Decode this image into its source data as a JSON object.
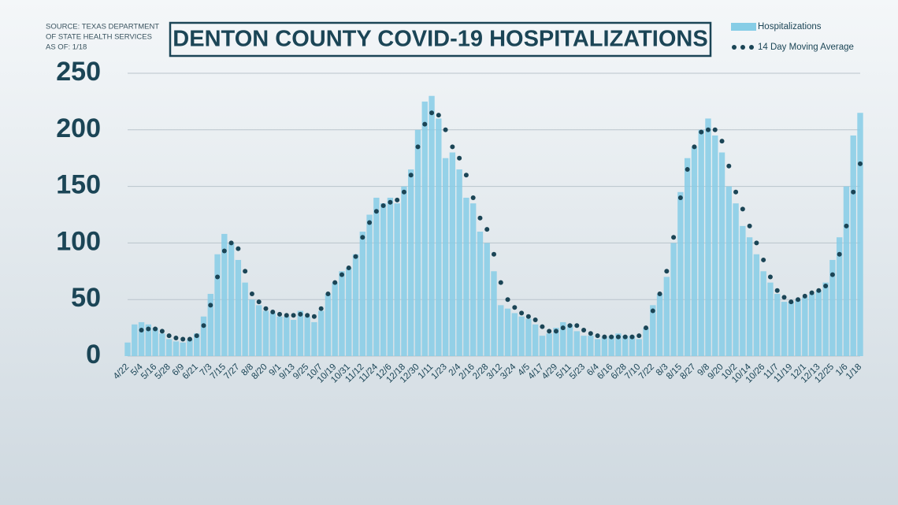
{
  "chart_data": {
    "type": "bar",
    "title": "DENTON COUNTY COVID-19 HOSPITALIZATIONS",
    "source": [
      "SOURCE: TEXAS DEPARTMENT",
      "OF STATE HEALTH SERVICES",
      "AS OF: 1/18"
    ],
    "categories": [
      "4/22",
      null,
      "5/4",
      null,
      "5/16",
      null,
      "5/28",
      null,
      "6/9",
      null,
      "6/21",
      null,
      "7/3",
      null,
      "7/15",
      null,
      "7/27",
      null,
      "8/8",
      null,
      "8/20",
      null,
      "9/1",
      null,
      "9/13",
      null,
      "9/25",
      null,
      "10/7",
      null,
      "10/19",
      null,
      "10/31",
      null,
      "11/12",
      null,
      "11/24",
      null,
      "12/6",
      null,
      "12/18",
      null,
      "12/30",
      null,
      "1/11",
      null,
      "1/23",
      null,
      "2/4",
      null,
      "2/16",
      null,
      "2/28",
      null,
      "3/12",
      null,
      "3/24",
      null,
      "4/5",
      null,
      "4/17",
      null,
      "4/29",
      null,
      "5/11",
      null,
      "5/23",
      null,
      "6/4",
      null,
      "6/16",
      null,
      "6/28",
      null,
      "7/10",
      null,
      "7/22",
      null,
      "8/3",
      null,
      "8/15",
      null,
      "8/27",
      null,
      "9/8",
      null,
      "9/20",
      null,
      "10/2",
      null,
      "10/14",
      null,
      "10/26",
      null,
      "11/7",
      null,
      "11/19",
      null,
      "12/1",
      null,
      "12/13",
      null,
      "12/25",
      null,
      "1/6",
      null,
      "1/18"
    ],
    "series": [
      {
        "name": "Hospitalizations",
        "type": "bar",
        "color": "#86cde6",
        "values": [
          12,
          28,
          30,
          28,
          25,
          20,
          15,
          13,
          12,
          15,
          20,
          35,
          55,
          90,
          108,
          100,
          85,
          65,
          50,
          45,
          40,
          38,
          35,
          35,
          32,
          40,
          35,
          30,
          40,
          55,
          65,
          75,
          78,
          90,
          110,
          125,
          140,
          135,
          140,
          135,
          150,
          165,
          200,
          225,
          230,
          210,
          175,
          180,
          165,
          140,
          135,
          110,
          100,
          75,
          45,
          42,
          38,
          35,
          33,
          28,
          18,
          20,
          25,
          30,
          28,
          22,
          18,
          18,
          15,
          17,
          18,
          20,
          18,
          18,
          15,
          25,
          45,
          55,
          70,
          100,
          145,
          175,
          185,
          200,
          210,
          195,
          180,
          150,
          135,
          115,
          105,
          90,
          75,
          65,
          55,
          48,
          48,
          50,
          52,
          55,
          58,
          65,
          85,
          105,
          150,
          195,
          215
        ]
      },
      {
        "name": "14 Day Moving Average",
        "type": "dots",
        "color": "#1b4556",
        "values": [
          null,
          null,
          23,
          24,
          24,
          22,
          18,
          16,
          15,
          15,
          18,
          27,
          45,
          70,
          93,
          100,
          95,
          75,
          55,
          48,
          42,
          39,
          37,
          36,
          36,
          37,
          36,
          35,
          42,
          55,
          65,
          72,
          78,
          88,
          105,
          118,
          128,
          133,
          136,
          138,
          145,
          160,
          185,
          205,
          215,
          213,
          200,
          185,
          175,
          160,
          140,
          122,
          112,
          90,
          65,
          50,
          43,
          38,
          35,
          32,
          26,
          22,
          22,
          25,
          27,
          27,
          23,
          20,
          18,
          17,
          17,
          17,
          17,
          17,
          18,
          25,
          40,
          55,
          75,
          105,
          140,
          165,
          185,
          198,
          200,
          200,
          190,
          168,
          145,
          130,
          115,
          100,
          85,
          70,
          58,
          52,
          48,
          50,
          53,
          56,
          58,
          62,
          72,
          90,
          115,
          145,
          170
        ]
      }
    ],
    "ylim": [
      0,
      250
    ],
    "yticks": [
      0,
      50,
      100,
      150,
      200,
      250
    ],
    "grid": true
  }
}
